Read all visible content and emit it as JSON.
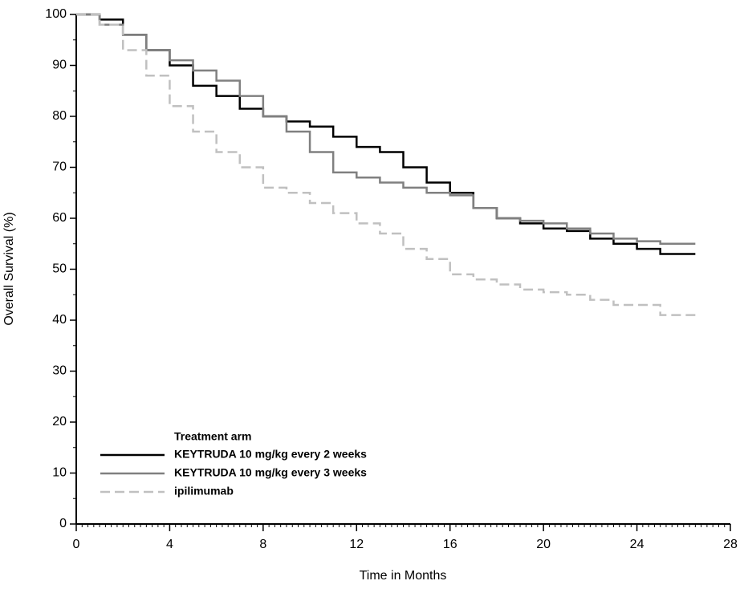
{
  "chart_data": {
    "type": "step",
    "x_label": "Time in Months",
    "y_label": "Overall Survival (%)",
    "legend_title": "Treatment arm",
    "xlim": [
      0,
      28
    ],
    "xticks": [
      0,
      4,
      8,
      12,
      16,
      20,
      24,
      28
    ],
    "ylim": [
      0,
      100
    ],
    "yticks": [
      0,
      10,
      20,
      30,
      40,
      50,
      60,
      70,
      80,
      90,
      100
    ],
    "series": [
      {
        "name": "KEYTRUDA 10 mg/kg every 2 weeks",
        "color": "#000000",
        "dash": false,
        "x": [
          0,
          1,
          2,
          3,
          4,
          5,
          6,
          7,
          8,
          9,
          10,
          11,
          12,
          13,
          14,
          15,
          16,
          17,
          18,
          19,
          20,
          21,
          22,
          23,
          24,
          25,
          26.5
        ],
        "values": [
          100,
          99,
          96,
          93,
          90,
          86,
          84,
          81.5,
          80,
          79,
          78,
          76,
          74,
          73,
          70,
          67,
          65,
          62,
          60,
          59,
          58,
          57.5,
          56,
          55,
          54,
          53,
          53
        ]
      },
      {
        "name": "KEYTRUDA 10 mg/kg every 3 weeks",
        "color": "#808080",
        "dash": false,
        "x": [
          0,
          1,
          2,
          3,
          4,
          5,
          6,
          7,
          8,
          9,
          10,
          11,
          12,
          13,
          14,
          15,
          16,
          17,
          18,
          19,
          20,
          21,
          22,
          23,
          24,
          25,
          26.5
        ],
        "values": [
          100,
          98,
          96,
          93,
          91,
          89,
          87,
          84,
          80,
          77,
          73,
          69,
          68,
          67,
          66,
          65,
          64.5,
          62,
          60,
          59.5,
          59,
          58,
          57,
          56,
          55.5,
          55,
          55
        ]
      },
      {
        "name": "ipilimumab",
        "color": "#c0c0c0",
        "dash": true,
        "x": [
          0,
          1,
          2,
          3,
          4,
          5,
          6,
          7,
          8,
          9,
          10,
          11,
          12,
          13,
          14,
          15,
          16,
          17,
          18,
          19,
          20,
          21,
          22,
          23,
          24,
          25,
          26.5
        ],
        "values": [
          100,
          98,
          93,
          88,
          82,
          77,
          73,
          70,
          66,
          65,
          63,
          61,
          59,
          57,
          54,
          52,
          49,
          48,
          47,
          46,
          45.5,
          45,
          44,
          43,
          43,
          41,
          41
        ]
      }
    ]
  }
}
